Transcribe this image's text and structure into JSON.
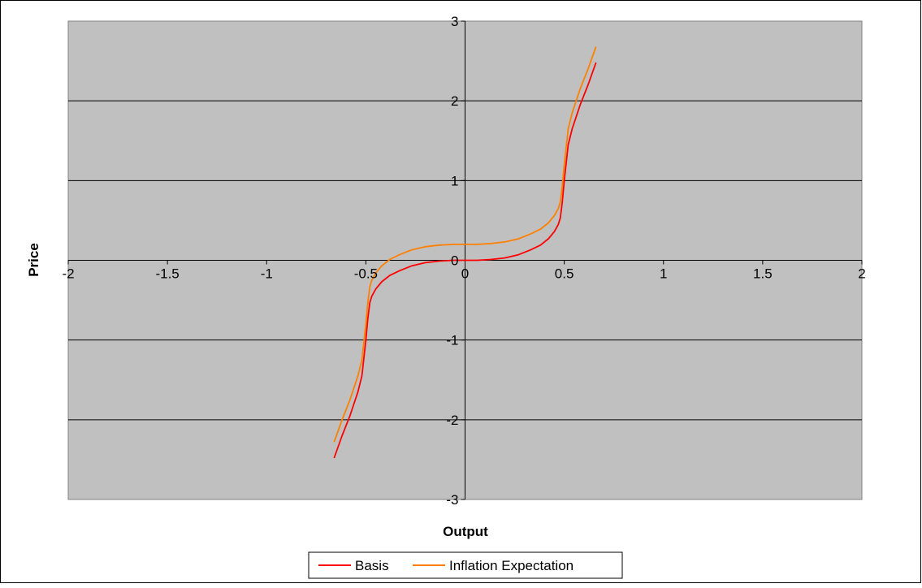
{
  "chart_data": {
    "type": "line",
    "title": "",
    "xlabel": "Output",
    "ylabel": "Price",
    "xlim": [
      -2,
      2
    ],
    "ylim": [
      -3,
      3
    ],
    "x_ticks": [
      -2,
      -1.5,
      -1,
      -0.5,
      0,
      0.5,
      1,
      1.5,
      2
    ],
    "y_ticks": [
      -3,
      -2,
      -1,
      0,
      1,
      2,
      3
    ],
    "x_tick_labels": [
      "-2",
      "-1.5",
      "-1",
      "-0.5",
      "0",
      "0.5",
      "1",
      "1.5",
      "2"
    ],
    "y_tick_labels": [
      "-3",
      "-2",
      "-1",
      "0",
      "1",
      "2",
      "3"
    ],
    "grid": "horizontal",
    "plot_background": "#c0c0c0",
    "legend_position": "bottom",
    "series": [
      {
        "name": "Basis",
        "color": "#ff0000",
        "x": [
          -0.66,
          -0.62,
          -0.58,
          -0.54,
          -0.52,
          -0.5,
          -0.49,
          -0.48,
          -0.47,
          -0.45,
          -0.42,
          -0.38,
          -0.33,
          -0.27,
          -0.2,
          -0.13,
          -0.06,
          0,
          0.06,
          0.13,
          0.2,
          0.27,
          0.33,
          0.38,
          0.42,
          0.45,
          0.47,
          0.48,
          0.49,
          0.5,
          0.52,
          0.54,
          0.58,
          0.62,
          0.66
        ],
        "y": [
          -2.48,
          -2.2,
          -1.95,
          -1.65,
          -1.45,
          -1.0,
          -0.73,
          -0.53,
          -0.45,
          -0.36,
          -0.27,
          -0.19,
          -0.13,
          -0.07,
          -0.03,
          -0.01,
          0.0,
          0.0,
          0.0,
          0.01,
          0.03,
          0.07,
          0.13,
          0.19,
          0.27,
          0.36,
          0.45,
          0.53,
          0.73,
          1.0,
          1.45,
          1.65,
          1.95,
          2.2,
          2.48
        ]
      },
      {
        "name": "Inflation Expectation",
        "color": "#ff8000",
        "x": [
          -0.66,
          -0.62,
          -0.58,
          -0.54,
          -0.52,
          -0.5,
          -0.49,
          -0.48,
          -0.47,
          -0.45,
          -0.42,
          -0.38,
          -0.33,
          -0.27,
          -0.2,
          -0.13,
          -0.06,
          0,
          0.06,
          0.13,
          0.2,
          0.27,
          0.33,
          0.38,
          0.42,
          0.45,
          0.47,
          0.48,
          0.49,
          0.5,
          0.52,
          0.54,
          0.58,
          0.62,
          0.66
        ],
        "y": [
          -2.28,
          -2.0,
          -1.75,
          -1.45,
          -1.25,
          -0.8,
          -0.53,
          -0.33,
          -0.25,
          -0.16,
          -0.07,
          0.01,
          0.07,
          0.13,
          0.17,
          0.19,
          0.2,
          0.2,
          0.2,
          0.21,
          0.23,
          0.27,
          0.33,
          0.39,
          0.47,
          0.56,
          0.65,
          0.73,
          0.93,
          1.2,
          1.65,
          1.85,
          2.15,
          2.4,
          2.68
        ]
      }
    ]
  }
}
